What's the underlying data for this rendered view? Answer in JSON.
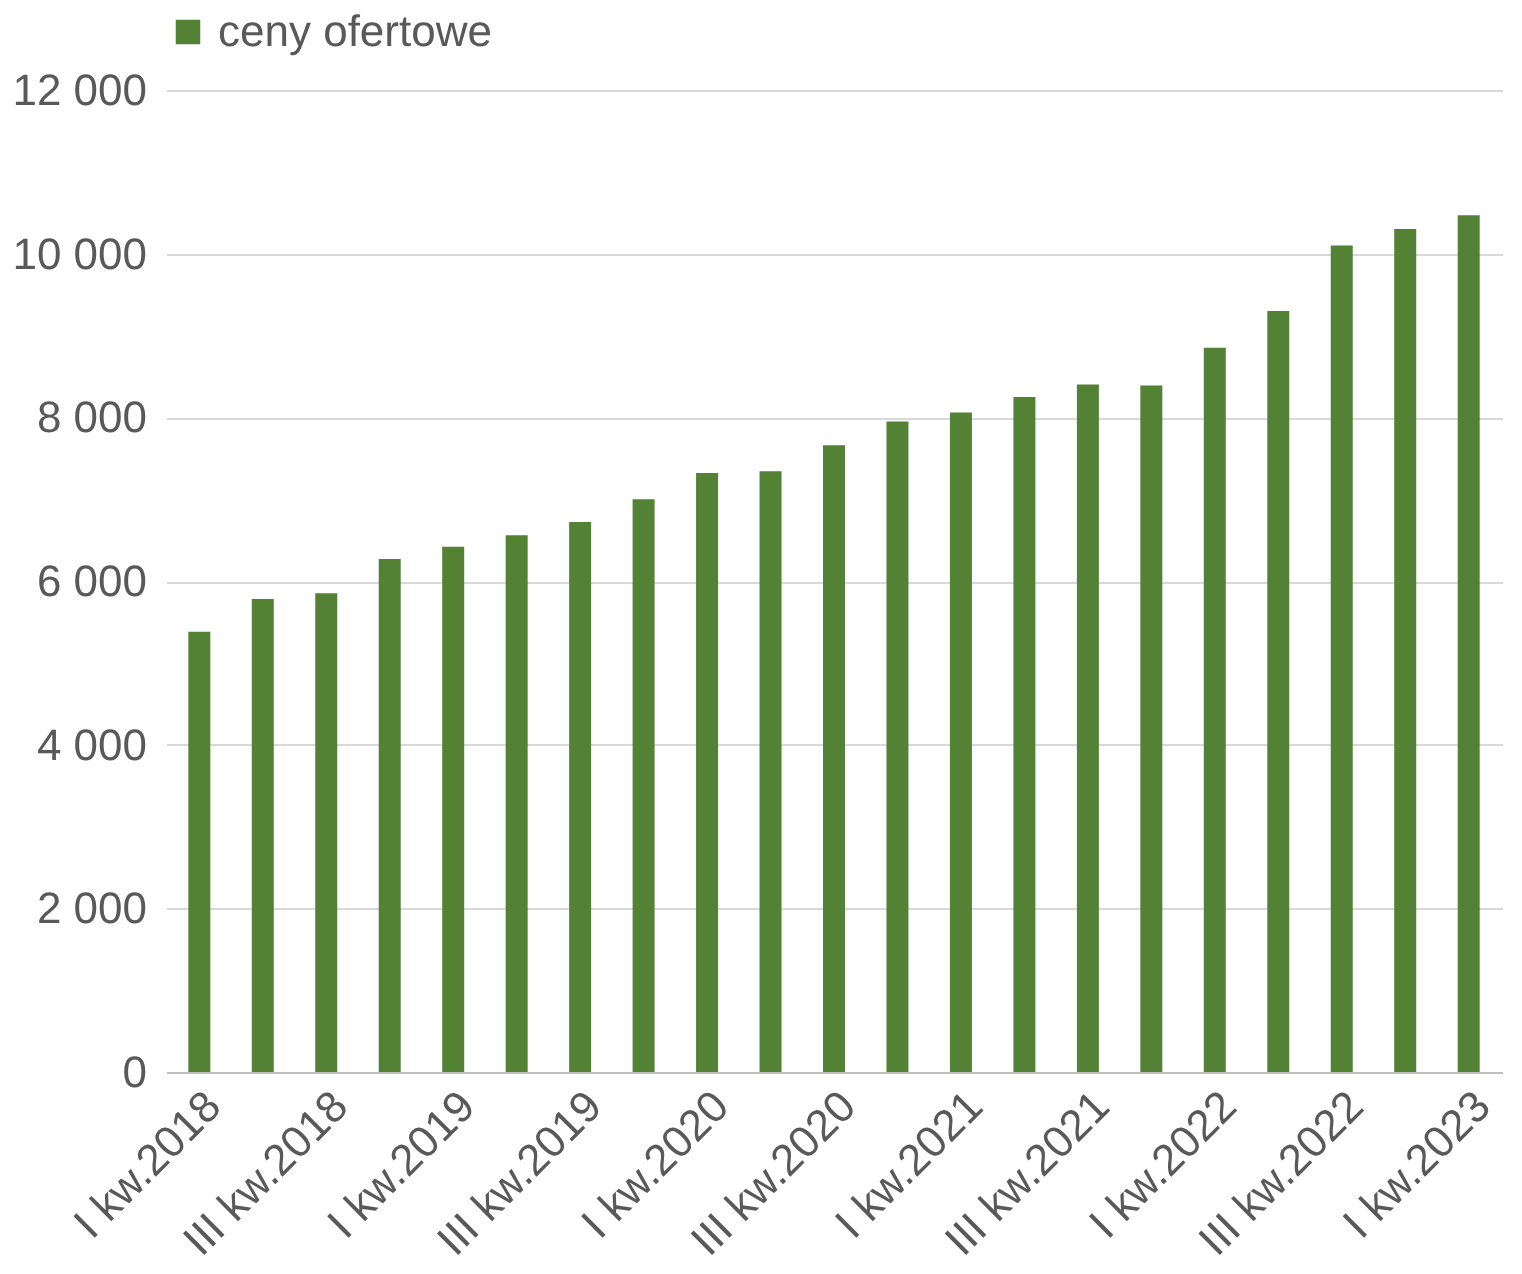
{
  "chart_data": {
    "type": "bar",
    "categories": [
      "I kw.2018",
      null,
      "III kw.2018",
      null,
      "I kw.2019",
      null,
      "III kw.2019",
      null,
      "I kw.2020",
      null,
      "III kw.2020",
      null,
      "I kw.2021",
      null,
      "III kw.2021",
      null,
      "I kw.2022",
      null,
      "III kw.2022",
      null,
      "I kw.2023"
    ],
    "series": [
      {
        "name": "ceny ofertowe",
        "color": "#548235",
        "values": [
          5380,
          5780,
          5850,
          6270,
          6420,
          6560,
          6720,
          7000,
          7320,
          7340,
          7660,
          7950,
          8060,
          8250,
          8400,
          8390,
          8850,
          9300,
          10100,
          10300,
          10470
        ]
      }
    ],
    "ylim": [
      0,
      12000
    ],
    "yticks": [
      0,
      {
        "value": 2000,
        "label": "2 000"
      },
      {
        "value": 4000,
        "label": "4 000"
      },
      {
        "value": 6000,
        "label": "6 000"
      },
      {
        "value": 8000,
        "label": "8 000"
      },
      {
        "value": 10000,
        "label": "10 000"
      },
      {
        "value": 12000,
        "label": "12 000"
      }
    ],
    "grid": "y",
    "legend": "top"
  }
}
